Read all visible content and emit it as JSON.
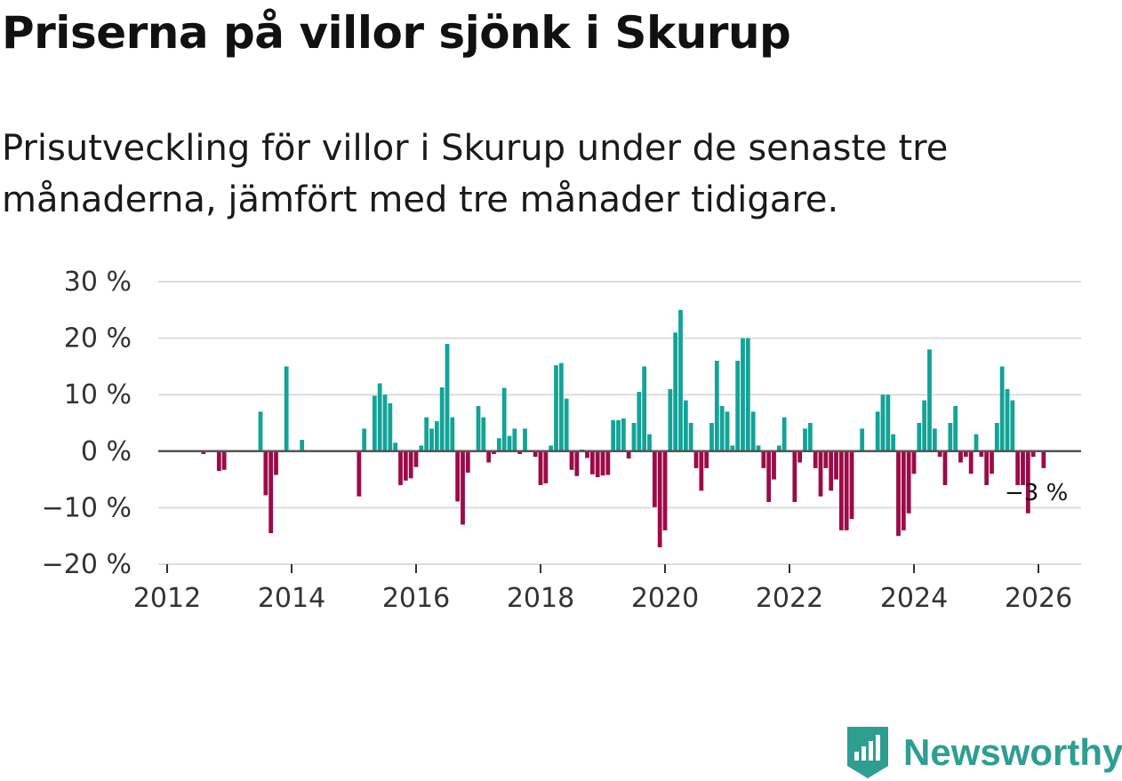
{
  "title": "Priserna på villor sjönk i Skurup",
  "subtitle": "Prisutveckling för villor i Skurup under de senaste tre månaderna, jämfört med tre månader tidigare.",
  "brand": {
    "name": "Newsworthy",
    "icon": "newsworthy-logo-icon"
  },
  "colors": {
    "positive": "#13a398",
    "negative": "#9c0b47",
    "grid": "#dddddd",
    "zero_line": "#555555",
    "brand": "#2e9e91"
  },
  "chart_data": {
    "type": "bar",
    "title": "Prisutveckling för villor i Skurup",
    "xlabel": "",
    "ylabel": "",
    "ylim": [
      -20,
      30
    ],
    "xlim": [
      2012,
      2026.7
    ],
    "y_ticks": [
      -20,
      -10,
      0,
      10,
      20,
      30
    ],
    "y_tick_labels": [
      "−20 %",
      "−10 %",
      "0 %",
      "10 %",
      "20 %",
      "30 %"
    ],
    "x_ticks": [
      2012,
      2014,
      2016,
      2018,
      2020,
      2022,
      2024,
      2026
    ],
    "x_tick_labels": [
      "2012",
      "2014",
      "2016",
      "2018",
      "2020",
      "2022",
      "2024",
      "2026"
    ],
    "grid": true,
    "start": {
      "year": 2012,
      "month": 1
    },
    "last_value_label": "−3 %",
    "values": [
      0,
      0,
      0,
      0,
      0,
      0,
      0,
      -0.5,
      0,
      0,
      -3.5,
      -3.3,
      0,
      0,
      0,
      0,
      0,
      0,
      7,
      -7.8,
      -14.5,
      -4.2,
      0,
      15,
      0,
      0,
      2,
      0,
      0,
      0,
      0,
      0,
      0,
      0,
      0,
      0,
      0,
      -8,
      4,
      0,
      9.8,
      12,
      10,
      8.5,
      1.5,
      -6,
      -5.2,
      -4.8,
      -2.8,
      1,
      6,
      4,
      5.3,
      11.3,
      19,
      6,
      -8.9,
      -13,
      -3.8,
      0,
      8,
      6,
      -2,
      -0.5,
      2.3,
      11.2,
      2.7,
      4,
      -0.5,
      4,
      0,
      -1,
      -6,
      -5.7,
      1,
      15.2,
      15.6,
      9.3,
      -3.3,
      -4.4,
      0.3,
      -1.2,
      -4.1,
      -4.6,
      -4.3,
      -4.2,
      5.5,
      5.5,
      5.8,
      -1.3,
      5,
      10.5,
      15,
      3,
      -9.9,
      -17,
      -14,
      11,
      21,
      25,
      9,
      5,
      -3,
      -7,
      -3,
      5,
      16,
      8,
      7,
      1,
      16,
      20,
      20,
      7,
      1,
      -3,
      -9,
      -5,
      1,
      6,
      0,
      -9,
      -2,
      4,
      5,
      -3,
      -8,
      -3,
      -7,
      -5,
      -14,
      -14,
      -12,
      0,
      4,
      0,
      0,
      7,
      10,
      10,
      3,
      -15,
      -14,
      -11,
      -4,
      5,
      9,
      18,
      4,
      -1,
      -6,
      5,
      8,
      -2,
      -1,
      -4,
      3,
      -1,
      -6,
      -4,
      5,
      15,
      11,
      9,
      -6,
      -6,
      -11,
      -1,
      0,
      -3
    ]
  }
}
